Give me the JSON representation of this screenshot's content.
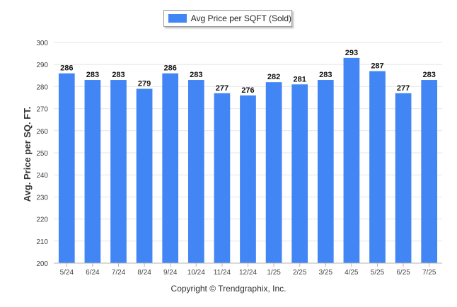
{
  "colors": {
    "bar": "#4285f4",
    "grid": "#e6e6e6",
    "axis": "#b5b5b5",
    "text": "#333333"
  },
  "legend": {
    "label": "Avg Price per SQFT (Sold)"
  },
  "copyright": "Copyright © Trendgraphix, Inc.",
  "chart_data": {
    "type": "bar",
    "title": "",
    "xlabel": "",
    "ylabel": "Avg. Price per SQ. FT.",
    "ylim": [
      200,
      300
    ],
    "yticks": [
      200,
      210,
      220,
      230,
      240,
      250,
      260,
      270,
      280,
      290,
      300
    ],
    "grid": true,
    "legend_position": "top-center",
    "categories": [
      "5/24",
      "6/24",
      "7/24",
      "8/24",
      "9/24",
      "10/24",
      "11/24",
      "12/24",
      "1/25",
      "2/25",
      "3/25",
      "4/25",
      "5/25",
      "6/25",
      "7/25"
    ],
    "series": [
      {
        "name": "Avg Price per SQFT (Sold)",
        "values": [
          286,
          283,
          283,
          279,
          286,
          283,
          277,
          276,
          282,
          281,
          283,
          293,
          287,
          277,
          283
        ]
      }
    ]
  }
}
